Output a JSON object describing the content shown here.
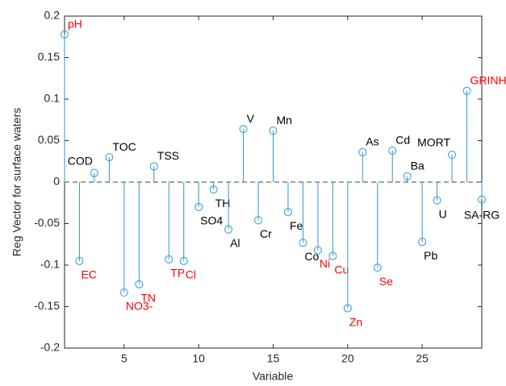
{
  "chart_data": {
    "type": "stem",
    "xlabel": "Variable",
    "ylabel": "Reg Vector for surface waters",
    "xlim": [
      1,
      29
    ],
    "ylim": [
      -0.2,
      0.2
    ],
    "xticks": [
      5,
      10,
      15,
      20,
      25
    ],
    "yticks": [
      -0.2,
      -0.15,
      -0.1,
      -0.05,
      0,
      0.05,
      0.1,
      0.15,
      0.2
    ],
    "color": "#2a9ad2",
    "baseline_color": "#808080",
    "series": [
      {
        "x": [
          1,
          2,
          3,
          4,
          5,
          6,
          7,
          8,
          9,
          10,
          11,
          12,
          13,
          14,
          15,
          16,
          17,
          18,
          19,
          20,
          21,
          22,
          23,
          24,
          25,
          26,
          27,
          28,
          29
        ],
        "values": [
          0.178,
          -0.095,
          0.011,
          0.03,
          -0.133,
          -0.123,
          0.019,
          -0.093,
          -0.095,
          -0.03,
          -0.009,
          -0.057,
          0.064,
          -0.046,
          0.062,
          -0.036,
          -0.073,
          -0.082,
          -0.089,
          -0.152,
          0.036,
          -0.103,
          0.038,
          0.007,
          -0.072,
          -0.022,
          0.033,
          0.11,
          -0.021
        ],
        "point_labels": [
          "pH",
          "EC",
          "COD",
          "TOC",
          "NO3-",
          "TN",
          "TSS",
          "TP",
          "Cl",
          "SO4",
          "TH",
          "Al",
          "V",
          "Cr",
          "Mn",
          "Fe",
          "Co",
          "Ni",
          "Cu",
          "Zn",
          "As",
          "Se",
          "Cd",
          "Ba",
          "Pb",
          "U",
          "MORT",
          "GRINH",
          "SA-RG"
        ],
        "label_colors": [
          "#ff0000",
          "#ff0000",
          "#000000",
          "#000000",
          "#ff0000",
          "#ff0000",
          "#000000",
          "#ff0000",
          "#ff0000",
          "#000000",
          "#000000",
          "#000000",
          "#000000",
          "#000000",
          "#000000",
          "#000000",
          "#000000",
          "#ff0000",
          "#ff0000",
          "#ff0000",
          "#000000",
          "#ff0000",
          "#000000",
          "#000000",
          "#000000",
          "#000000",
          "#000000",
          "#ff0000",
          "#000000"
        ]
      }
    ]
  }
}
